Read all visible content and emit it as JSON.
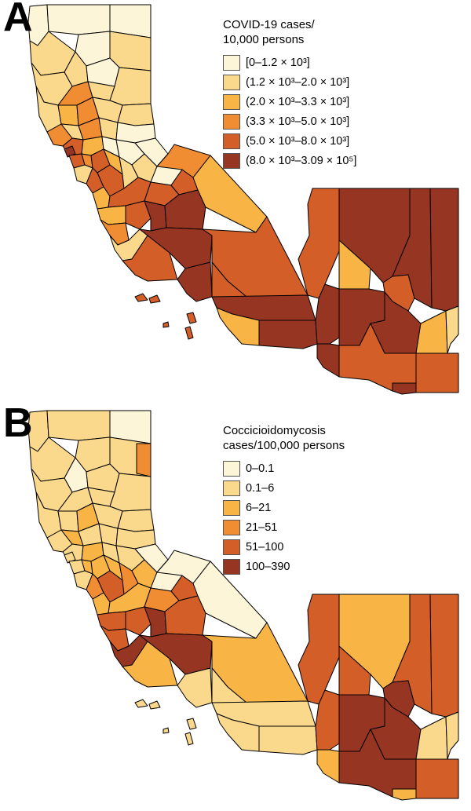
{
  "colors": {
    "c1": "#fdf5d7",
    "c2": "#fad88c",
    "c3": "#f9b446",
    "c4": "#f08c32",
    "c5": "#d35e28",
    "c6": "#973523"
  },
  "panels": [
    {
      "letter": "A",
      "legend_title_lines": [
        "COVID-19 cases/",
        "10,000 persons"
      ],
      "legend": [
        {
          "label": "[0–1.2 × 10³]",
          "color": "#fdf5d7"
        },
        {
          "label": "(1.2 × 10³–2.0 × 10³]",
          "color": "#fad88c"
        },
        {
          "label": "(2.0 × 10³–3.3 × 10³]",
          "color": "#f9b446"
        },
        {
          "label": "(3.3 × 10³–5.0 × 10³]",
          "color": "#f08c32"
        },
        {
          "label": "(5.0 × 10³–8.0 × 10³]",
          "color": "#d35e28"
        },
        {
          "label": "(8.0 × 10³–3.09 × 10⁵]",
          "color": "#973523"
        }
      ]
    },
    {
      "letter": "B",
      "legend_title_lines": [
        "Coccicioidomycosis",
        "cases/100,000 persons"
      ],
      "legend": [
        {
          "label": "0–0.1",
          "color": "#fdf5d7"
        },
        {
          "label": "0.1–6",
          "color": "#fad88c"
        },
        {
          "label": "6–21",
          "color": "#f9b446"
        },
        {
          "label": "21–51",
          "color": "#f08c32"
        },
        {
          "label": "51–100",
          "color": "#d35e28"
        },
        {
          "label": "100–390",
          "color": "#973523"
        }
      ]
    }
  ]
}
